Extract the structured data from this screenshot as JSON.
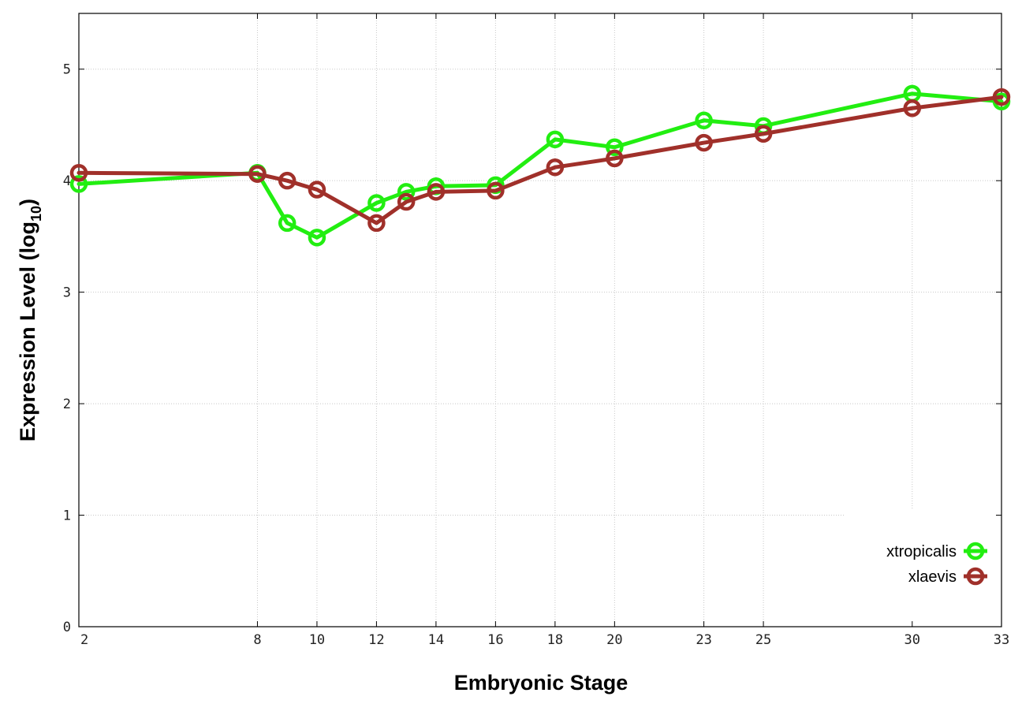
{
  "chart_data": {
    "type": "line",
    "xlabel": "Embryonic Stage",
    "ylabel_main": "Expression Level (log",
    "ylabel_sub": "10",
    "ylabel_close": ")",
    "xlim": [
      2,
      33
    ],
    "ylim": [
      0,
      5.5
    ],
    "x_ticks": [
      2,
      8,
      10,
      12,
      14,
      16,
      18,
      20,
      23,
      25,
      30,
      33
    ],
    "y_ticks": [
      0,
      1,
      2,
      3,
      4,
      5
    ],
    "grid": true,
    "legend_position": "bottom-right",
    "series": [
      {
        "name": "xtropicalis",
        "color": "#22ee11",
        "x": [
          2,
          8,
          9,
          10,
          12,
          13,
          14,
          16,
          18,
          20,
          23,
          25,
          30,
          33
        ],
        "y": [
          3.97,
          4.07,
          3.62,
          3.49,
          3.8,
          3.9,
          3.95,
          3.96,
          4.37,
          4.3,
          4.54,
          4.49,
          4.78,
          4.71
        ]
      },
      {
        "name": "xlaevis",
        "color": "#a0302a",
        "x": [
          2,
          8,
          9,
          10,
          12,
          13,
          14,
          16,
          18,
          20,
          23,
          25,
          30,
          33
        ],
        "y": [
          4.07,
          4.06,
          4.0,
          3.92,
          3.62,
          3.81,
          3.9,
          3.91,
          4.12,
          4.2,
          4.34,
          4.42,
          4.65,
          4.75
        ]
      }
    ]
  }
}
